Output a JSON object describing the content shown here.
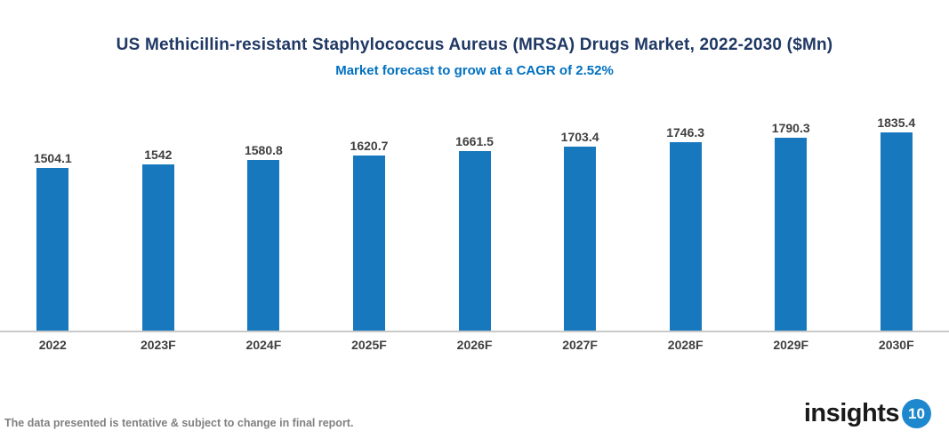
{
  "title": "US Methicillin-resistant Staphylococcus Aureus (MRSA) Drugs Market, 2022-2030 ($Mn)",
  "subtitle": "Market forecast to grow at a CAGR of 2.52%",
  "chart_data": {
    "type": "bar",
    "title": "US Methicillin-resistant Staphylococcus Aureus (MRSA) Drugs Market, 2022-2030 ($Mn)",
    "subtitle": "Market forecast to grow at a CAGR of 2.52%",
    "categories": [
      "2022",
      "2023F",
      "2024F",
      "2025F",
      "2026F",
      "2027F",
      "2028F",
      "2029F",
      "2030F"
    ],
    "values": [
      1504.1,
      1542,
      1580.8,
      1620.7,
      1661.5,
      1703.4,
      1746.3,
      1790.3,
      1835.4
    ],
    "value_labels": [
      "1504.1",
      "1542",
      "1580.8",
      "1620.7",
      "1661.5",
      "1703.4",
      "1746.3",
      "1790.3",
      "1835.4"
    ],
    "xlabel": "",
    "ylabel": "",
    "ylim": [
      0,
      2000
    ],
    "grid": false,
    "legend": "none",
    "bar_color": "#1778BE"
  },
  "footer": {
    "note": "The data presented is tentative & subject to change in final report."
  },
  "logo": {
    "text": "insights",
    "badge": "10"
  },
  "colors": {
    "bar": "#1778BE",
    "title": "#1F3864",
    "subtitle": "#0070C0",
    "value_label": "#3F3F3F",
    "axis_line": "#C9C9C9",
    "footer_text": "#808080",
    "logo_text": "#1A1A1A",
    "logo_badge": "#1E88CE"
  }
}
